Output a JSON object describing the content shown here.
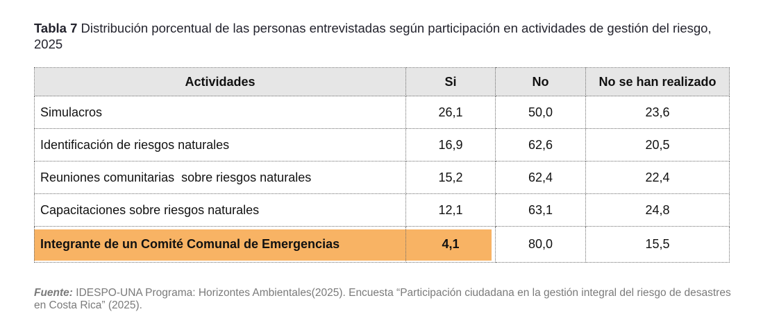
{
  "caption": {
    "label": "Tabla 7",
    "text": " Distribución porcentual de las personas entrevistadas según participación en actividades de gestión del riesgo, 2025"
  },
  "table": {
    "headers": [
      "Actividades",
      "Si",
      "No",
      "No se han realizado"
    ],
    "rows": [
      {
        "actividad": "Simulacros",
        "si": "26,1",
        "no": "50,0",
        "no_realizado": "23,6"
      },
      {
        "actividad": "Identificación de riesgos naturales",
        "si": "16,9",
        "no": "62,6",
        "no_realizado": "20,5"
      },
      {
        "actividad": "Reuniones comunitarias  sobre riesgos naturales",
        "si": "15,2",
        "no": "62,4",
        "no_realizado": "22,4"
      },
      {
        "actividad": "Capacitaciones sobre riesgos naturales",
        "si": "12,1",
        "no": "63,1",
        "no_realizado": "24,8"
      },
      {
        "actividad": "Integrante de un Comité Comunal de Emergencias",
        "si": "4,1",
        "no": "80,0",
        "no_realizado": "15,5"
      }
    ],
    "highlight_color": "#f8b364",
    "header_bg": "#e6e6e6"
  },
  "footer": {
    "label": "Fuente:",
    "text": " IDESPO-UNA Programa: Horizontes Ambientales(2025). Encuesta “Participación ciudadana en la gestión integral del riesgo de desastres en Costa Rica” (2025)."
  }
}
